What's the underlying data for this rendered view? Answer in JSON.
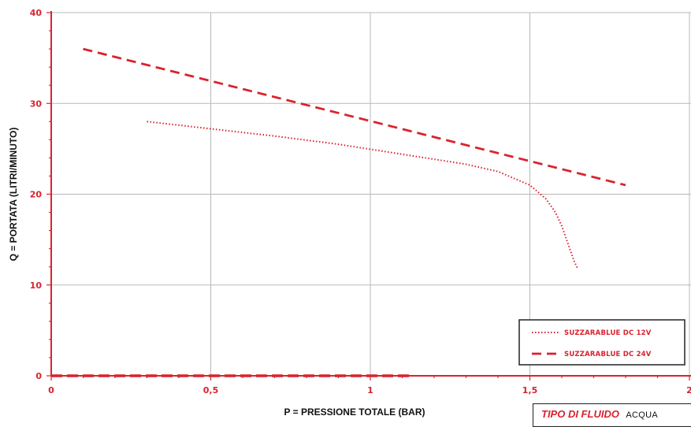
{
  "chart_data": {
    "type": "line",
    "title": "",
    "xlabel": "P = PRESSIONE TOTALE (BAR)",
    "ylabel": "Q = PORTATA (LITRI/MINUTO)",
    "xlim": [
      0,
      2
    ],
    "ylim": [
      0,
      40
    ],
    "x_ticks": [
      0,
      0.5,
      1,
      1.5,
      2
    ],
    "x_tick_labels": [
      "0",
      "0,5",
      "1",
      "1,5",
      "2"
    ],
    "y_ticks": [
      0,
      10,
      20,
      30,
      40
    ],
    "y_tick_labels": [
      "0",
      "10",
      "20",
      "30",
      "40"
    ],
    "grid": true,
    "legend_position": "bottom-right",
    "series": [
      {
        "name": "SUZZARABLUE DC 12V",
        "style": "dotted",
        "color": "#d9232e",
        "x": [
          0.3,
          0.5,
          0.7,
          0.9,
          1.1,
          1.3,
          1.4,
          1.5,
          1.55,
          1.58,
          1.6,
          1.62,
          1.64,
          1.65
        ],
        "y": [
          28,
          27.2,
          26.4,
          25.5,
          24.4,
          23.3,
          22.5,
          21,
          19.5,
          18,
          16.5,
          14.5,
          12.5,
          11.8
        ]
      },
      {
        "name": "SUZZARABLUE DC 24V",
        "style": "dashed",
        "color": "#d9232e",
        "x": [
          0.1,
          1.8
        ],
        "y": [
          36,
          21
        ]
      }
    ]
  },
  "fluid": {
    "label": "TIPO DI FLUIDO",
    "value": "ACQUA"
  }
}
